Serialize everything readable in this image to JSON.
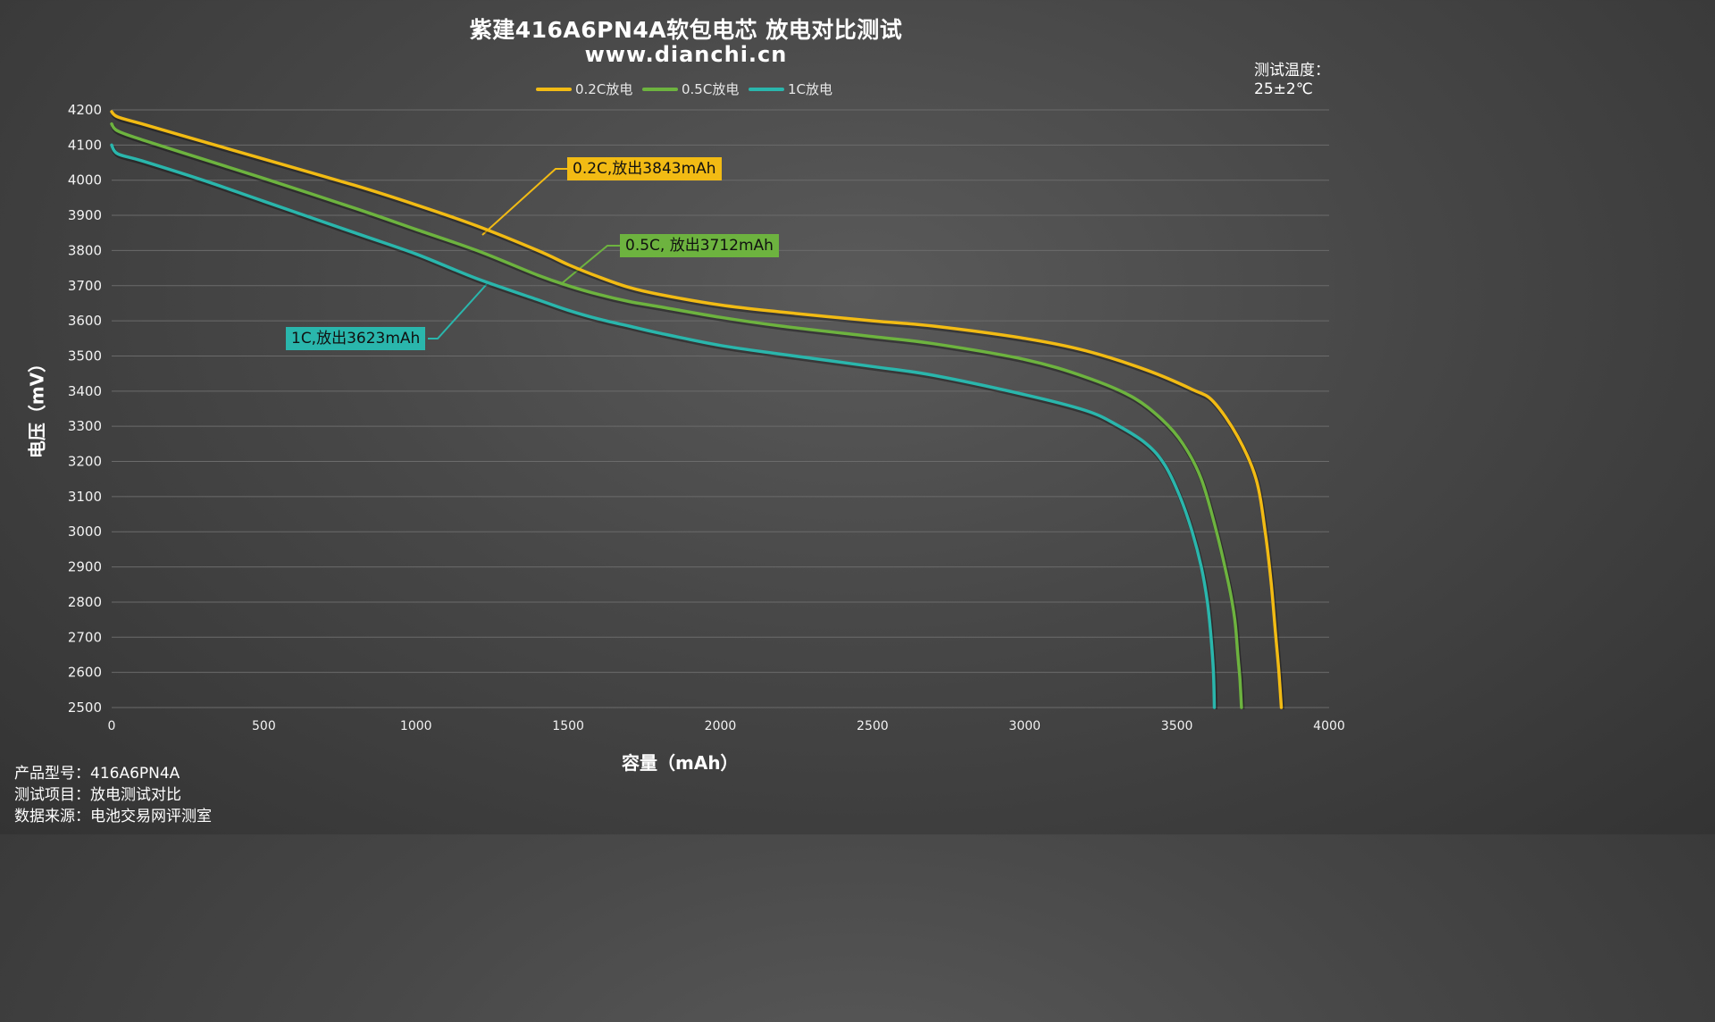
{
  "header": {
    "title": "紫建416A6PN4A软包电芯 放电对比测试",
    "subtitle": "www.dianchi.cn"
  },
  "temperature": {
    "label": "测试温度：",
    "value": "25±2℃"
  },
  "info": {
    "model": "产品型号：416A6PN4A",
    "item": "测试项目：放电测试对比",
    "source": "数据来源：电池交易网评测室"
  },
  "colors": {
    "c02": "#f2bb14",
    "c05": "#6db33f",
    "c1": "#2ab6ac",
    "grid": "#6b6b6b"
  },
  "annotations": {
    "c02": "0.2C,放出3843mAh",
    "c05": "0.5C, 放出3712mAh",
    "c1": "1C,放出3623mAh"
  },
  "chart_data": {
    "type": "line",
    "xlabel": "容量（mAh）",
    "ylabel": "电压（mV）",
    "xlim": [
      0,
      4000
    ],
    "ylim": [
      2500,
      4200
    ],
    "xticks": [
      0,
      500,
      1000,
      1500,
      2000,
      2500,
      3000,
      3500,
      4000
    ],
    "yticks": [
      2500,
      2600,
      2700,
      2800,
      2900,
      3000,
      3100,
      3200,
      3300,
      3400,
      3500,
      3600,
      3700,
      3800,
      3900,
      4000,
      4100,
      4200
    ],
    "grid": true,
    "legend_position": "top-center",
    "series": [
      {
        "name": "0.2C放电",
        "color": "#f2bb14",
        "x": [
          0,
          20,
          100,
          300,
          500,
          800,
          1000,
          1200,
          1400,
          1500,
          1600,
          1700,
          1800,
          2000,
          2200,
          2500,
          2700,
          3000,
          3200,
          3400,
          3550,
          3620,
          3700,
          3760,
          3790,
          3810,
          3825,
          3835,
          3843
        ],
        "y": [
          4195,
          4180,
          4160,
          4110,
          4060,
          3985,
          3930,
          3870,
          3800,
          3760,
          3725,
          3695,
          3675,
          3645,
          3625,
          3600,
          3585,
          3550,
          3515,
          3460,
          3405,
          3370,
          3270,
          3150,
          3000,
          2850,
          2700,
          2600,
          2500
        ]
      },
      {
        "name": "0.5C放电",
        "color": "#6db33f",
        "x": [
          0,
          20,
          100,
          300,
          500,
          800,
          1000,
          1200,
          1400,
          1500,
          1600,
          1700,
          1800,
          2000,
          2200,
          2500,
          2700,
          3000,
          3200,
          3350,
          3450,
          3520,
          3580,
          3630,
          3670,
          3690,
          3700,
          3707,
          3712
        ],
        "y": [
          4160,
          4140,
          4115,
          4060,
          4005,
          3920,
          3860,
          3800,
          3730,
          3700,
          3675,
          3655,
          3640,
          3610,
          3585,
          3555,
          3535,
          3490,
          3440,
          3385,
          3320,
          3250,
          3150,
          3000,
          2850,
          2750,
          2650,
          2580,
          2500
        ]
      },
      {
        "name": "1C放电",
        "color": "#2ab6ac",
        "x": [
          0,
          20,
          100,
          300,
          500,
          800,
          1000,
          1200,
          1400,
          1500,
          1600,
          1700,
          1800,
          2000,
          2200,
          2500,
          2700,
          3000,
          3200,
          3300,
          3400,
          3460,
          3510,
          3550,
          3580,
          3600,
          3612,
          3620,
          3623
        ],
        "y": [
          4100,
          4075,
          4055,
          4000,
          3940,
          3850,
          3790,
          3720,
          3660,
          3630,
          3605,
          3585,
          3565,
          3530,
          3505,
          3470,
          3445,
          3390,
          3345,
          3305,
          3250,
          3190,
          3100,
          3000,
          2900,
          2800,
          2700,
          2600,
          2500
        ]
      }
    ]
  }
}
